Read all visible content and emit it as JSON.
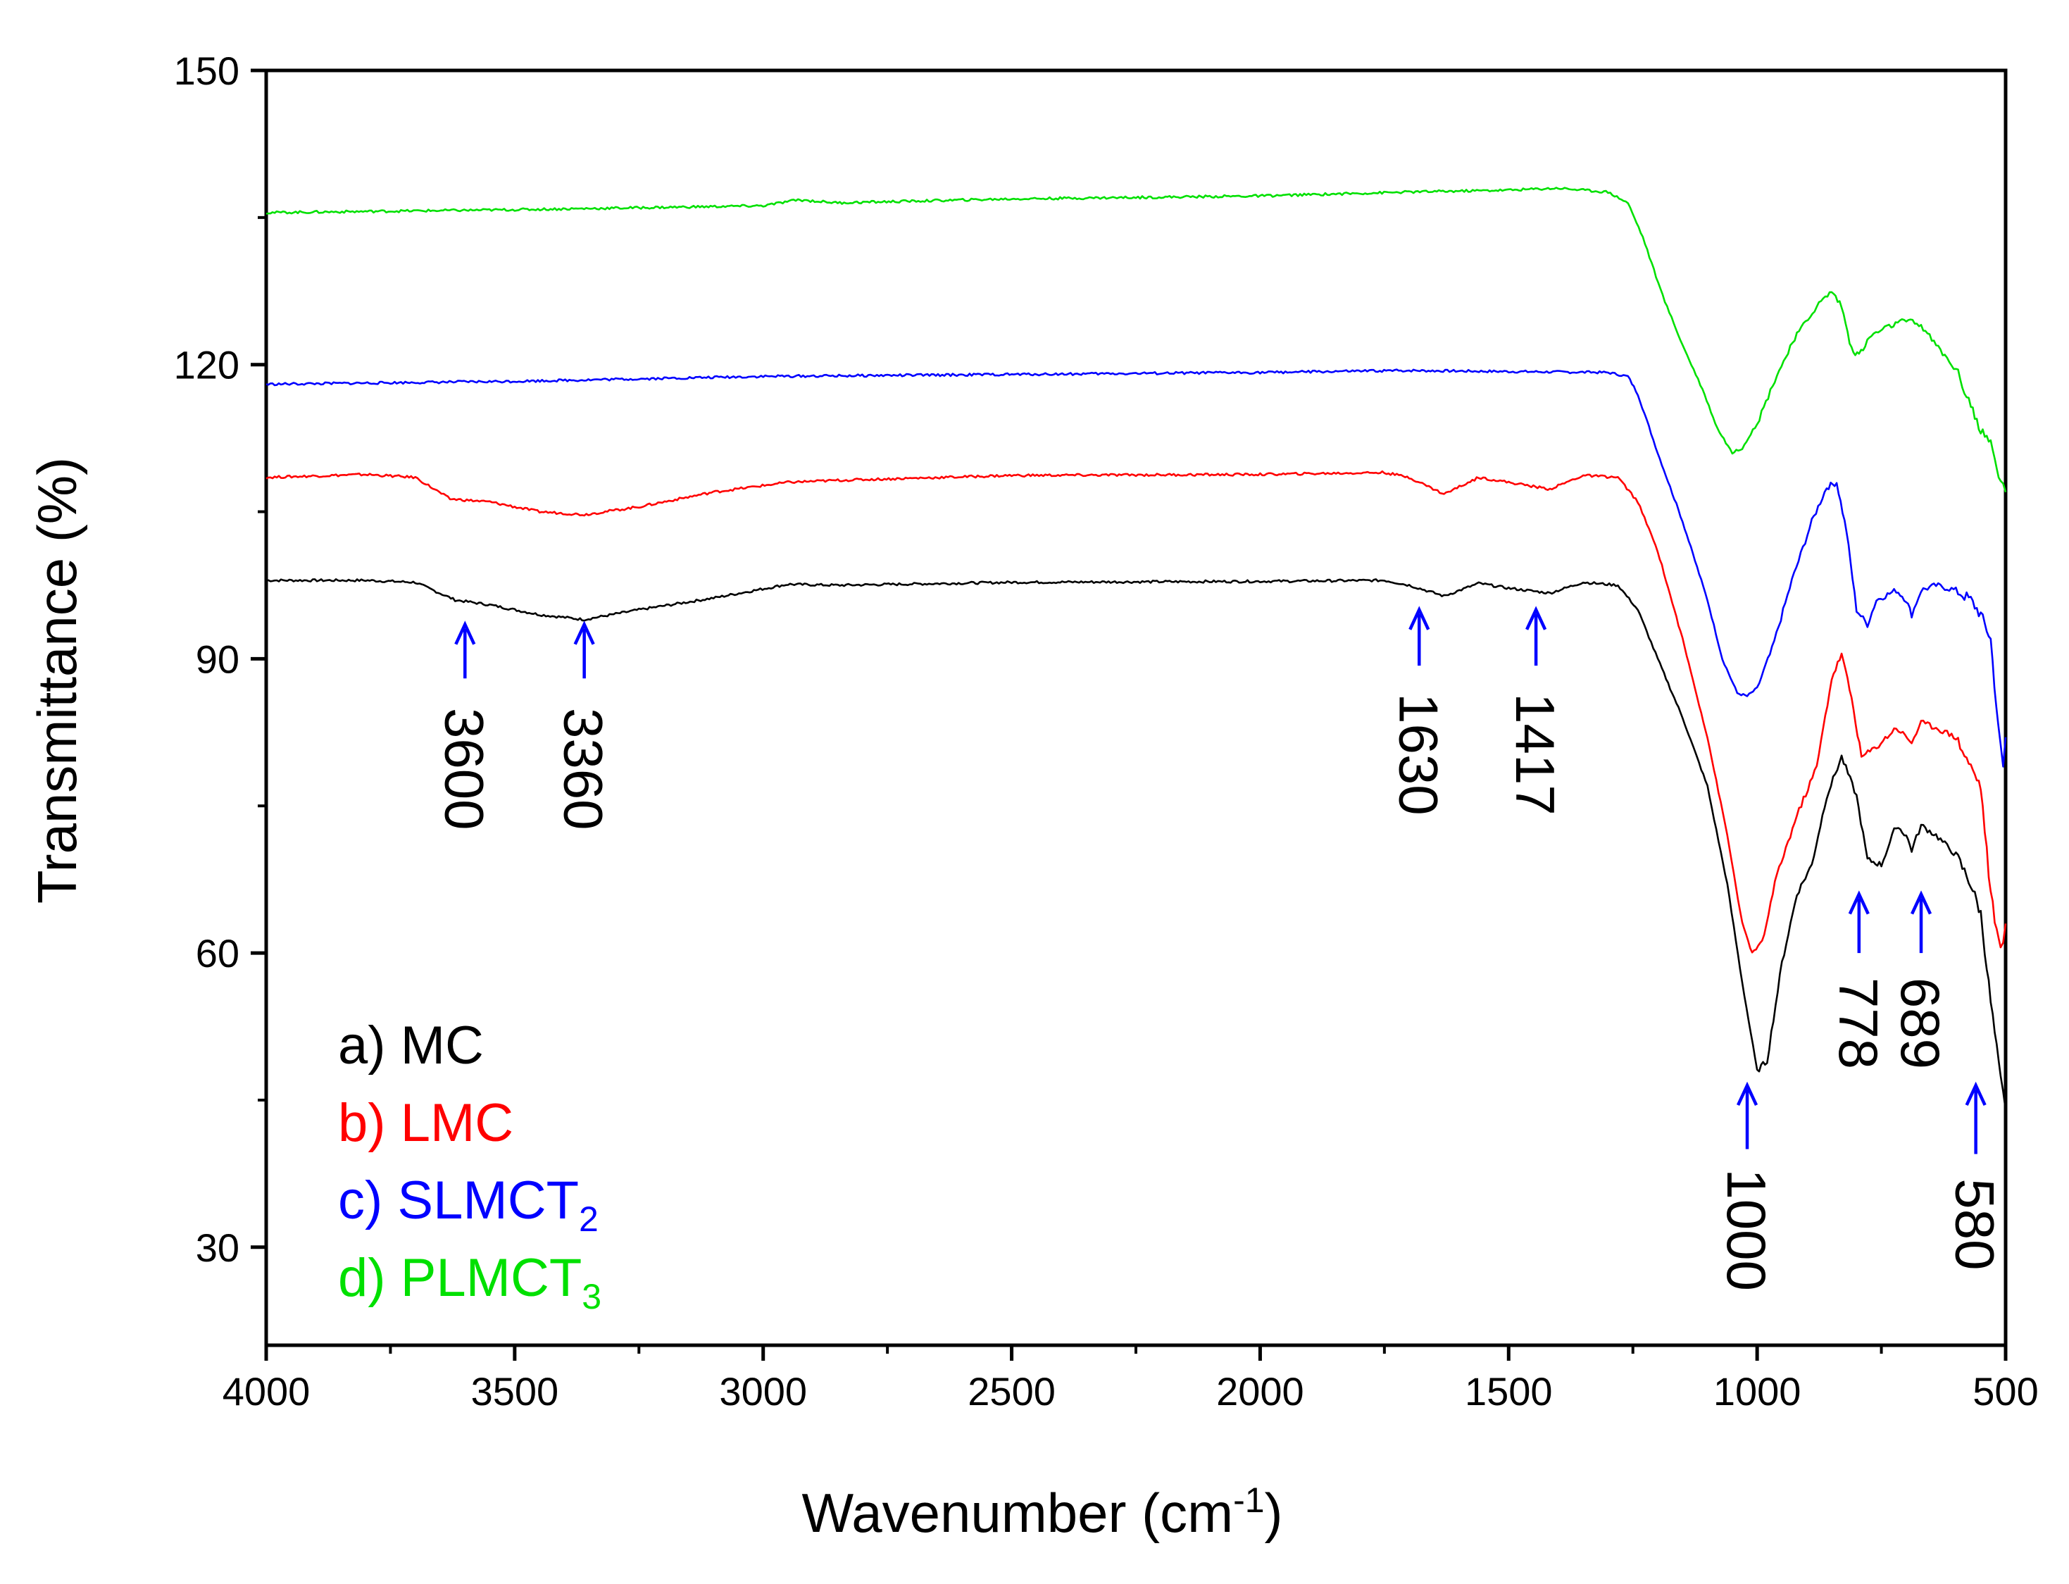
{
  "chart_data": {
    "type": "line",
    "title": "",
    "xlabel": "Wavenumber (cm",
    "xlabel_sup": "-1",
    "xlabel_end": ")",
    "ylabel": "Transmittance (%)",
    "xlim": [
      4000,
      500
    ],
    "ylim": [
      20,
      150
    ],
    "x_ticks": [
      4000,
      3500,
      3000,
      2500,
      2000,
      1500,
      1000,
      500
    ],
    "x_tick_labels": [
      "4000",
      "3500",
      "3000",
      "2500",
      "2000",
      "1500",
      "1000",
      "500"
    ],
    "y_ticks": [
      30,
      60,
      90,
      120,
      150
    ],
    "y_tick_labels": [
      "30",
      "60",
      "90",
      "120",
      "150"
    ],
    "grid": false,
    "series": [
      {
        "name": "a) MC",
        "label_main": "a) MC",
        "label_sub": "",
        "color": "#000000",
        "points": [
          [
            4000,
            98
          ],
          [
            3800,
            98
          ],
          [
            3700,
            97.8
          ],
          [
            3620,
            96
          ],
          [
            3550,
            95.5
          ],
          [
            3450,
            94.5
          ],
          [
            3360,
            94
          ],
          [
            3250,
            95
          ],
          [
            3100,
            96.2
          ],
          [
            2950,
            97.6
          ],
          [
            2850,
            97.5
          ],
          [
            2500,
            97.8
          ],
          [
            2000,
            97.9
          ],
          [
            1750,
            98
          ],
          [
            1700,
            97.5
          ],
          [
            1630,
            96.4
          ],
          [
            1560,
            97.7
          ],
          [
            1500,
            97.2
          ],
          [
            1417,
            96.7
          ],
          [
            1350,
            97.8
          ],
          [
            1280,
            97.5
          ],
          [
            1240,
            95
          ],
          [
            1200,
            90
          ],
          [
            1150,
            84
          ],
          [
            1100,
            77
          ],
          [
            1060,
            67
          ],
          [
            1030,
            57
          ],
          [
            1000,
            48
          ],
          [
            980,
            49
          ],
          [
            950,
            59
          ],
          [
            920,
            66
          ],
          [
            890,
            69
          ],
          [
            860,
            76
          ],
          [
            830,
            80
          ],
          [
            800,
            76
          ],
          [
            778,
            69.5
          ],
          [
            750,
            69
          ],
          [
            720,
            73
          ],
          [
            700,
            72
          ],
          [
            689,
            70.5
          ],
          [
            670,
            73
          ],
          [
            640,
            72
          ],
          [
            600,
            70
          ],
          [
            570,
            67
          ],
          [
            550,
            64
          ],
          [
            530,
            55
          ],
          [
            510,
            47
          ],
          [
            500,
            44
          ]
        ]
      },
      {
        "name": "b) LMC",
        "label_main": "b) LMC",
        "label_sub": "",
        "color": "#ff0000",
        "points": [
          [
            4000,
            108.5
          ],
          [
            3800,
            108.8
          ],
          [
            3700,
            108.5
          ],
          [
            3630,
            106.3
          ],
          [
            3550,
            106
          ],
          [
            3450,
            105
          ],
          [
            3360,
            104.7
          ],
          [
            3250,
            105.5
          ],
          [
            3100,
            107
          ],
          [
            2950,
            108
          ],
          [
            2850,
            108.2
          ],
          [
            2500,
            108.7
          ],
          [
            2000,
            108.8
          ],
          [
            1750,
            109
          ],
          [
            1700,
            108.5
          ],
          [
            1630,
            106.8
          ],
          [
            1560,
            108.5
          ],
          [
            1500,
            108
          ],
          [
            1417,
            107.3
          ],
          [
            1350,
            108.7
          ],
          [
            1280,
            108.5
          ],
          [
            1240,
            106
          ],
          [
            1200,
            101
          ],
          [
            1150,
            92
          ],
          [
            1100,
            82
          ],
          [
            1060,
            72
          ],
          [
            1030,
            63
          ],
          [
            1010,
            60
          ],
          [
            990,
            61
          ],
          [
            960,
            68
          ],
          [
            920,
            74
          ],
          [
            880,
            79
          ],
          [
            850,
            88
          ],
          [
            830,
            90.5
          ],
          [
            810,
            86
          ],
          [
            790,
            80
          ],
          [
            760,
            81
          ],
          [
            720,
            83
          ],
          [
            689,
            81.5
          ],
          [
            670,
            83.5
          ],
          [
            640,
            83
          ],
          [
            600,
            82
          ],
          [
            570,
            79
          ],
          [
            550,
            77
          ],
          [
            530,
            66
          ],
          [
            510,
            60
          ],
          [
            500,
            63
          ]
        ]
      },
      {
        "name": "c) SLMCT2",
        "label_main": "c) SLMCT",
        "label_sub": "2",
        "color": "#0000ff",
        "points": [
          [
            4000,
            118
          ],
          [
            3500,
            118.3
          ],
          [
            3000,
            118.8
          ],
          [
            2500,
            119
          ],
          [
            2000,
            119.2
          ],
          [
            1700,
            119.4
          ],
          [
            1500,
            119.3
          ],
          [
            1300,
            119.2
          ],
          [
            1260,
            118.8
          ],
          [
            1240,
            117
          ],
          [
            1200,
            111
          ],
          [
            1150,
            104
          ],
          [
            1100,
            96
          ],
          [
            1070,
            90
          ],
          [
            1040,
            86.5
          ],
          [
            1020,
            86.2
          ],
          [
            1000,
            87
          ],
          [
            970,
            91
          ],
          [
            930,
            98
          ],
          [
            890,
            104
          ],
          [
            860,
            107.5
          ],
          [
            840,
            108
          ],
          [
            820,
            103
          ],
          [
            800,
            95
          ],
          [
            778,
            93.5
          ],
          [
            760,
            96
          ],
          [
            720,
            97
          ],
          [
            700,
            96
          ],
          [
            689,
            94.5
          ],
          [
            670,
            97
          ],
          [
            640,
            97.5
          ],
          [
            600,
            97
          ],
          [
            570,
            96
          ],
          [
            550,
            94.5
          ],
          [
            530,
            92
          ],
          [
            515,
            83
          ],
          [
            505,
            79
          ],
          [
            500,
            82
          ]
        ]
      },
      {
        "name": "d) PLMCT3",
        "label_main": "d) PLMCT",
        "label_sub": "3",
        "color": "#00e000",
        "points": [
          [
            4000,
            135.5
          ],
          [
            3500,
            135.8
          ],
          [
            3000,
            136.2
          ],
          [
            2930,
            136.8
          ],
          [
            2850,
            136.5
          ],
          [
            2500,
            136.9
          ],
          [
            2000,
            137.2
          ],
          [
            1700,
            137.6
          ],
          [
            1500,
            137.8
          ],
          [
            1400,
            138
          ],
          [
            1300,
            137.6
          ],
          [
            1260,
            136.5
          ],
          [
            1230,
            133
          ],
          [
            1190,
            127
          ],
          [
            1150,
            122
          ],
          [
            1110,
            117.5
          ],
          [
            1080,
            113.5
          ],
          [
            1050,
            111
          ],
          [
            1030,
            111.5
          ],
          [
            1000,
            114
          ],
          [
            960,
            119
          ],
          [
            920,
            123
          ],
          [
            880,
            126
          ],
          [
            850,
            127.5
          ],
          [
            830,
            126
          ],
          [
            810,
            121.5
          ],
          [
            795,
            121
          ],
          [
            770,
            123
          ],
          [
            730,
            124
          ],
          [
            700,
            124.5
          ],
          [
            670,
            124
          ],
          [
            640,
            122
          ],
          [
            600,
            119.5
          ],
          [
            570,
            116
          ],
          [
            550,
            113
          ],
          [
            530,
            112
          ],
          [
            510,
            108
          ],
          [
            500,
            107
          ]
        ]
      }
    ],
    "annotations": [
      {
        "label": "3600",
        "x": 3600,
        "arrow_y": [
          88,
          93.5
        ],
        "text_y": 85,
        "side": "below"
      },
      {
        "label": "3360",
        "x": 3360,
        "arrow_y": [
          88,
          93.5
        ],
        "text_y": 85,
        "side": "below"
      },
      {
        "label": "1630",
        "x": 1680,
        "arrow_y": [
          89.3,
          95
        ],
        "text_y": 86.5,
        "side": "below"
      },
      {
        "label": "1417",
        "x": 1445,
        "arrow_y": [
          89.3,
          95
        ],
        "text_y": 86.5,
        "side": "below"
      },
      {
        "label": "1000",
        "x": 1020,
        "arrow_y": [
          40,
          46.5
        ],
        "text_y": 38,
        "side": "below"
      },
      {
        "label": "778",
        "x": 795,
        "arrow_y": [
          60,
          66
        ],
        "text_y": 57.5,
        "side": "below"
      },
      {
        "label": "689",
        "x": 670,
        "arrow_y": [
          60,
          66
        ],
        "text_y": 57.5,
        "side": "below"
      },
      {
        "label": "580",
        "x": 560,
        "arrow_y": [
          39.5,
          46.5
        ],
        "text_y": 37,
        "side": "below"
      }
    ],
    "annotation_arrow_color": "#0000ff"
  }
}
